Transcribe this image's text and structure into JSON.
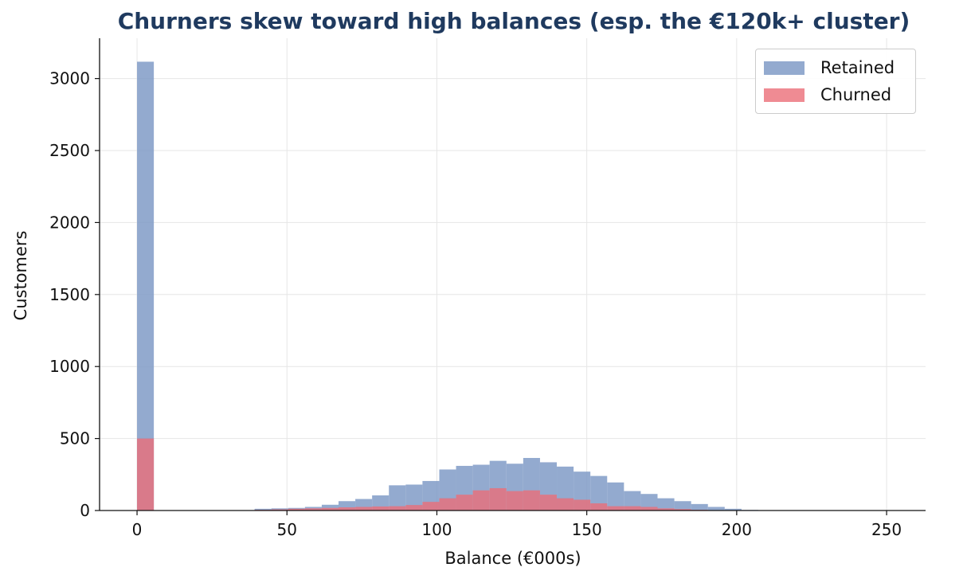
{
  "chart_data": {
    "type": "bar",
    "title": "Churners skew toward high balances (esp. the €120k+ cluster)",
    "xlabel": "Balance (€000s)",
    "ylabel": "Customers",
    "xlim": [
      -12.5,
      263
    ],
    "ylim": [
      0,
      3280
    ],
    "xticks": [
      0,
      50,
      100,
      150,
      200,
      250
    ],
    "yticks": [
      0,
      500,
      1000,
      1500,
      2000,
      2500,
      3000
    ],
    "grid": true,
    "legend_position": "top-right",
    "bin_width": 5.6,
    "bin_start": 0,
    "series": [
      {
        "name": "Retained",
        "color": "#7b97c4",
        "values": [
          3117,
          0,
          0,
          0,
          0,
          0,
          2,
          12,
          15,
          18,
          25,
          40,
          65,
          80,
          105,
          175,
          180,
          205,
          285,
          310,
          318,
          345,
          325,
          365,
          335,
          305,
          270,
          240,
          195,
          135,
          115,
          85,
          65,
          45,
          25,
          12,
          4,
          1,
          1,
          0,
          0,
          0,
          0,
          0,
          0,
          0
        ]
      },
      {
        "name": "Churned",
        "color": "#eb6e78",
        "values": [
          500,
          0,
          0,
          0,
          0,
          0,
          0,
          5,
          8,
          12,
          15,
          18,
          22,
          25,
          28,
          30,
          38,
          60,
          85,
          110,
          140,
          155,
          135,
          140,
          110,
          85,
          75,
          50,
          30,
          30,
          25,
          15,
          10,
          5,
          2,
          1,
          0,
          0,
          0,
          0,
          0,
          0,
          0,
          0,
          0,
          0
        ]
      }
    ]
  }
}
